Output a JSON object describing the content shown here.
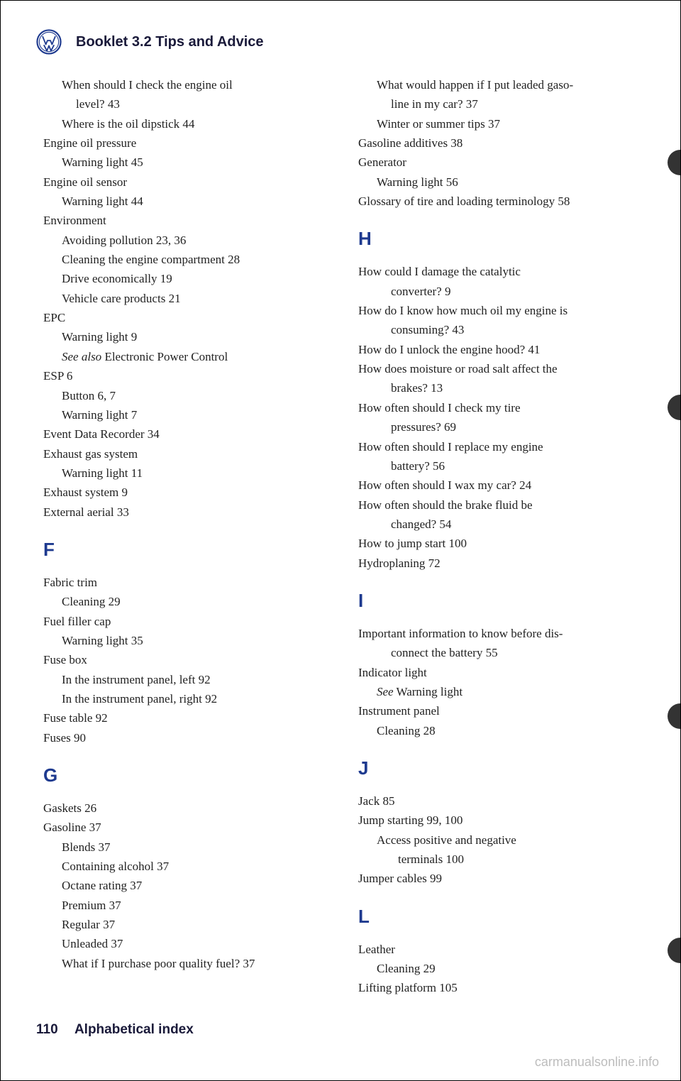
{
  "header": {
    "title": "Booklet 3.2  Tips and Advice"
  },
  "footer": {
    "page": "110",
    "title": "Alphabetical index"
  },
  "watermark": "carmanualsonline.info",
  "thumbs": [
    210,
    555,
    990,
    1320
  ],
  "left": [
    {
      "t": "When should I check the engine oil",
      "cls": "sub"
    },
    {
      "t": "level?  43",
      "cls": "sub",
      "extra": "padding-left:46px"
    },
    {
      "t": "Where is the oil dipstick  44",
      "cls": "sub"
    },
    {
      "t": "Engine oil pressure"
    },
    {
      "t": "Warning light  45",
      "cls": "sub"
    },
    {
      "t": "Engine oil sensor"
    },
    {
      "t": "Warning light  44",
      "cls": "sub"
    },
    {
      "t": "Environment"
    },
    {
      "t": "Avoiding pollution  23, 36",
      "cls": "sub"
    },
    {
      "t": "Cleaning the engine compartment  28",
      "cls": "sub"
    },
    {
      "t": "Drive economically  19",
      "cls": "sub"
    },
    {
      "t": "Vehicle care products  21",
      "cls": "sub"
    },
    {
      "t": "EPC"
    },
    {
      "t": "Warning light  9",
      "cls": "sub"
    },
    {
      "t": "<span class=\"italic\">See also</span> Electronic Power Control",
      "cls": "sub",
      "html": true
    },
    {
      "t": "ESP  6"
    },
    {
      "t": "Button  6, 7",
      "cls": "sub"
    },
    {
      "t": "Warning light  7",
      "cls": "sub"
    },
    {
      "t": "Event Data Recorder  34"
    },
    {
      "t": "Exhaust gas system"
    },
    {
      "t": "Warning light  11",
      "cls": "sub"
    },
    {
      "t": "Exhaust system  9"
    },
    {
      "t": "External aerial  33"
    },
    {
      "letter": "F"
    },
    {
      "t": "Fabric trim"
    },
    {
      "t": "Cleaning  29",
      "cls": "sub"
    },
    {
      "t": "Fuel filler cap"
    },
    {
      "t": "Warning light  35",
      "cls": "sub"
    },
    {
      "t": "Fuse box"
    },
    {
      "t": "In the instrument panel, left  92",
      "cls": "sub"
    },
    {
      "t": "In the instrument panel, right  92",
      "cls": "sub"
    },
    {
      "t": "Fuse table  92"
    },
    {
      "t": "Fuses  90"
    },
    {
      "letter": "G"
    },
    {
      "t": "Gaskets  26"
    },
    {
      "t": "Gasoline  37"
    },
    {
      "t": "Blends  37",
      "cls": "sub"
    },
    {
      "t": "Containing alcohol  37",
      "cls": "sub"
    },
    {
      "t": "Octane rating  37",
      "cls": "sub"
    },
    {
      "t": "Premium  37",
      "cls": "sub"
    },
    {
      "t": "Regular  37",
      "cls": "sub"
    },
    {
      "t": "Unleaded  37",
      "cls": "sub"
    },
    {
      "t": "What if I purchase poor quality fuel?  37",
      "cls": "sub"
    }
  ],
  "right": [
    {
      "t": "What would happen if I put leaded gaso-",
      "cls": "sub"
    },
    {
      "t": "line in my car?  37",
      "cls": "sub",
      "extra": "padding-left:46px"
    },
    {
      "t": "Winter or summer tips  37",
      "cls": "sub"
    },
    {
      "t": "Gasoline additives  38"
    },
    {
      "t": "Generator"
    },
    {
      "t": "Warning light  56",
      "cls": "sub"
    },
    {
      "t": "Glossary of tire and loading terminology  58"
    },
    {
      "letter": "H"
    },
    {
      "t": "How could I damage the catalytic"
    },
    {
      "t": "converter?  9",
      "cls": "sub",
      "extra": "padding-left:46px"
    },
    {
      "t": "How do I know how much oil my engine is"
    },
    {
      "t": "consuming?  43",
      "cls": "sub",
      "extra": "padding-left:46px"
    },
    {
      "t": "How do I unlock the engine hood?  41"
    },
    {
      "t": "How does moisture or road salt affect the"
    },
    {
      "t": "brakes?  13",
      "cls": "sub",
      "extra": "padding-left:46px"
    },
    {
      "t": "How often should I check my tire"
    },
    {
      "t": "pressures?  69",
      "cls": "sub",
      "extra": "padding-left:46px"
    },
    {
      "t": "How often should I replace my engine"
    },
    {
      "t": "battery?  56",
      "cls": "sub",
      "extra": "padding-left:46px"
    },
    {
      "t": "How often should I wax my car?  24"
    },
    {
      "t": "How often should the brake fluid be"
    },
    {
      "t": "changed?  54",
      "cls": "sub",
      "extra": "padding-left:46px"
    },
    {
      "t": "How to jump start  100"
    },
    {
      "t": "Hydroplaning  72"
    },
    {
      "letter": "I"
    },
    {
      "t": "Important information to know before dis-"
    },
    {
      "t": "connect the battery  55",
      "cls": "sub",
      "extra": "padding-left:46px"
    },
    {
      "t": "Indicator light"
    },
    {
      "t": "<span class=\"italic\">See</span> Warning light",
      "cls": "sub",
      "html": true
    },
    {
      "t": "Instrument panel"
    },
    {
      "t": "Cleaning  28",
      "cls": "sub"
    },
    {
      "letter": "J"
    },
    {
      "t": "Jack  85"
    },
    {
      "t": "Jump starting  99, 100"
    },
    {
      "t": "Access positive and negative",
      "cls": "sub"
    },
    {
      "t": "terminals  100",
      "cls": "sub",
      "extra": "padding-left:56px"
    },
    {
      "t": "Jumper cables  99"
    },
    {
      "letter": "L"
    },
    {
      "t": "Leather"
    },
    {
      "t": "Cleaning  29",
      "cls": "sub"
    },
    {
      "t": "Lifting platform  105"
    }
  ]
}
